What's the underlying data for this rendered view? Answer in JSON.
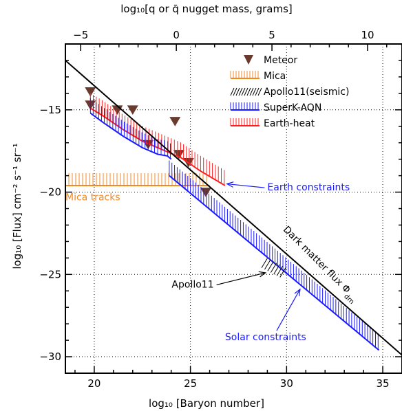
{
  "chart_data": {
    "type": "line",
    "xlabel": "log₁₀ [Baryon number]",
    "x2label": "log₁₀[q or q̄ nugget mass, grams]",
    "ylabel": "log₁₀ [Flux] cm⁻² s⁻¹ sr⁻¹",
    "xlim": [
      18.5,
      36
    ],
    "ylim": [
      -31,
      -11
    ],
    "x2lim": [
      -5.8,
      11.8
    ],
    "x_ticks": [
      20,
      25,
      30,
      35
    ],
    "x2_ticks": [
      -5,
      0,
      5,
      10
    ],
    "y_ticks": [
      -15,
      -20,
      -25,
      -30
    ],
    "grid": "dotted",
    "legend": {
      "position": "top-right",
      "entries": [
        {
          "label": "Meteor",
          "marker": "triangle-down",
          "color": "#6b3a2e"
        },
        {
          "label": "Mica",
          "marker": "hatch",
          "color": "#f08a24"
        },
        {
          "label": "Apollo11(seismic)",
          "marker": "hatch-diagonal",
          "color": "#000000"
        },
        {
          "label": "SuperK-AQN",
          "marker": "hatch",
          "color": "#1a1aff"
        },
        {
          "label": "Earth-heat",
          "marker": "hatch",
          "color": "#ff2020"
        }
      ]
    },
    "series": [
      {
        "name": "Meteor",
        "kind": "points",
        "color": "#6b3a2e",
        "x": [
          19.8,
          19.8,
          21.2,
          22.0,
          22.8,
          24.2,
          24.4,
          24.9,
          25.8
        ],
        "y": [
          -13.9,
          -14.7,
          -15.0,
          -15.0,
          -17.1,
          -15.7,
          -17.7,
          -18.2,
          -20.0
        ]
      },
      {
        "name": "Mica",
        "kind": "hatched-band",
        "color": "#f08a24",
        "x": [
          18.5,
          26.0
        ],
        "y": [
          -19.6,
          -19.6
        ],
        "direction": "up"
      },
      {
        "name": "Earth-heat",
        "kind": "hatched-line",
        "color": "#ff2020",
        "x": [
          19.8,
          20.5,
          21.5,
          22.5,
          23.5,
          24.5,
          25.5,
          26.8
        ],
        "y": [
          -14.9,
          -15.4,
          -16.2,
          -16.9,
          -17.4,
          -17.9,
          -18.7,
          -19.6
        ],
        "direction": "up"
      },
      {
        "name": "SuperK-AQN",
        "kind": "hatched-line",
        "color": "#1a1aff",
        "x": [
          19.8,
          20.5,
          21.5,
          22.5,
          23.3,
          23.8,
          24.0
        ],
        "y": [
          -15.2,
          -15.8,
          -16.6,
          -17.3,
          -17.7,
          -17.8,
          -18.0
        ],
        "direction": "up"
      },
      {
        "name": "Solar constraints",
        "kind": "hatched-line",
        "color": "#1a1aff",
        "x": [
          23.9,
          34.8
        ],
        "y": [
          -19.0,
          -29.6
        ],
        "direction": "up"
      },
      {
        "name": "Apollo11(seismic)",
        "kind": "hatched-diagonal",
        "color": "#000000",
        "x": [
          28.7,
          29.7
        ],
        "y": [
          -24.6,
          -25.2
        ],
        "direction": "up"
      },
      {
        "name": "Dark matter flux",
        "kind": "line",
        "color": "#000000",
        "x": [
          18.5,
          36.0
        ],
        "y": [
          -12.0,
          -29.9
        ]
      }
    ],
    "annotations": [
      {
        "text": "Mica tracks",
        "x": 18.5,
        "y": -20.5,
        "color": "#f08a24"
      },
      {
        "text": "Earth constraints",
        "x": 29.0,
        "y": -19.9,
        "color": "#1a1aff",
        "arrow_to": [
          26.9,
          -19.5
        ]
      },
      {
        "text": "Apollo11",
        "x": 25.0,
        "y": -25.8,
        "color": "#000000",
        "arrow_to": [
          28.9,
          -24.9
        ]
      },
      {
        "text": "Solar constraints",
        "x": 26.8,
        "y": -29.0,
        "color": "#1a1aff",
        "arrow_to": [
          30.7,
          -25.9
        ]
      },
      {
        "text": "Dark matter flux Φ",
        "sub": "dm",
        "x": 29.8,
        "y": -22.3,
        "color": "#000000",
        "rotate": -45
      }
    ]
  }
}
